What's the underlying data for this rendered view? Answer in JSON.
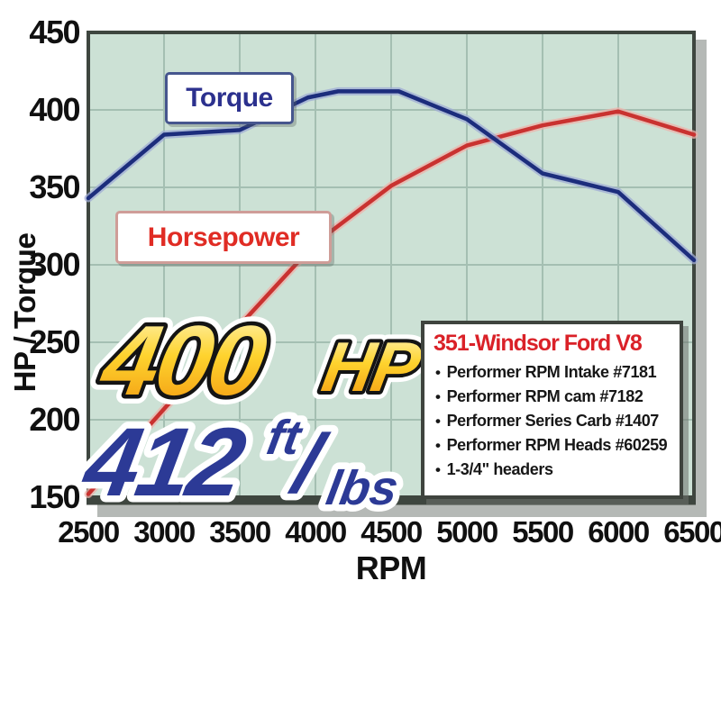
{
  "chart_data": {
    "type": "line",
    "title": "",
    "xlabel": "RPM",
    "ylabel": "HP / Torque",
    "xlim": [
      2500,
      6500
    ],
    "ylim": [
      150,
      450
    ],
    "x_ticks": [
      2500,
      3000,
      3500,
      4000,
      4500,
      5000,
      5500,
      6000,
      6500
    ],
    "y_ticks": [
      150,
      200,
      250,
      300,
      350,
      400,
      450
    ],
    "grid": true,
    "plot_bg": "#cce1d5",
    "grid_color": "#a4bfb2",
    "border_color": "#3e463f",
    "shadow_color": "#b5b9b6",
    "series": [
      {
        "name": "Horsepower",
        "color": "#c93230",
        "halo": "#eeb1a9",
        "points": [
          [
            2500,
            152
          ],
          [
            3000,
            207
          ],
          [
            3500,
            261
          ],
          [
            4000,
            314
          ],
          [
            4500,
            351
          ],
          [
            5000,
            377
          ],
          [
            5500,
            390
          ],
          [
            6000,
            399
          ],
          [
            6500,
            384
          ]
        ]
      },
      {
        "name": "Torque",
        "color": "#1c2d7c",
        "halo": "#9fabd4",
        "points": [
          [
            2500,
            343
          ],
          [
            3000,
            384
          ],
          [
            3500,
            387
          ],
          [
            3950,
            408
          ],
          [
            4150,
            412
          ],
          [
            4550,
            412
          ],
          [
            5000,
            394
          ],
          [
            5500,
            359
          ],
          [
            6000,
            347
          ],
          [
            6500,
            303
          ]
        ]
      }
    ]
  },
  "labels": {
    "torque": "Torque",
    "horsepower": "Horsepower"
  },
  "annotations": {
    "hp_value": "400",
    "hp_unit": "HP",
    "tq_value": "412",
    "tq_ft": "ft",
    "tq_slash": "/",
    "tq_lbs": "lbs"
  },
  "legend": {
    "title": "351-Windsor Ford V8",
    "bullet": "•",
    "items": [
      "Performer RPM Intake #7181",
      "Performer RPM cam #7182",
      "Performer Series Carb #1407",
      "Performer RPM Heads #60259",
      "1-3/4\" headers"
    ]
  },
  "colors": {
    "legend_red": "#da2128",
    "torque_text": "#2c318e",
    "hp_text": "#e02c24",
    "gold_top": "#fff7c2",
    "gold_mid": "#fed32e",
    "gold_bottom": "#f2960f",
    "big_blue": "#2c3a96"
  }
}
